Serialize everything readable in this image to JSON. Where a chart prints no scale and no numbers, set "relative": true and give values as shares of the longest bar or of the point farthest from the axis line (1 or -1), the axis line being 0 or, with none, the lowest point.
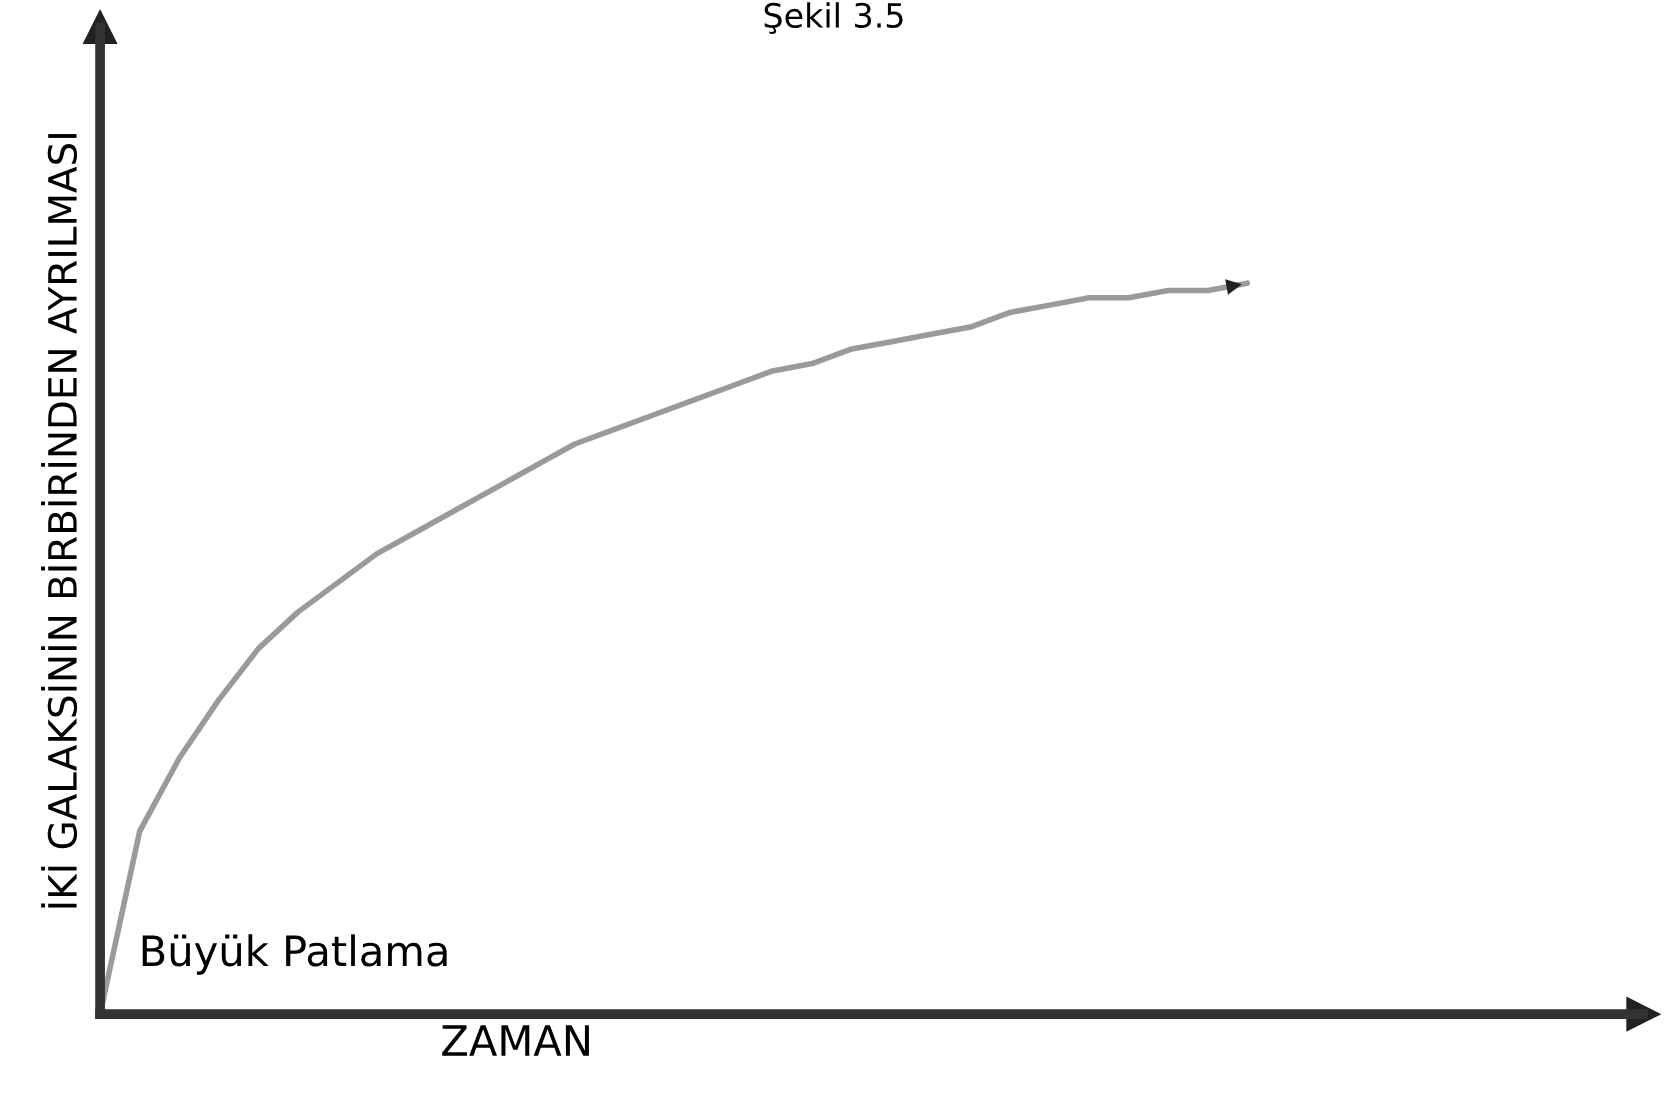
{
  "chart_data": {
    "type": "line",
    "title": "Şekil 3.5",
    "xlabel": "ZAMAN",
    "ylabel": "İKİ GALAKSİNİN BİRBİRİNDEN AYRILMASI",
    "relative": true,
    "annotations": [
      "Büyük Patlama"
    ],
    "categories": [
      null,
      null,
      null,
      null,
      null,
      null,
      null,
      null,
      null,
      null,
      null,
      null,
      null,
      null,
      null,
      null,
      null,
      null,
      null,
      null,
      null,
      null,
      null,
      null,
      null,
      null,
      null,
      null,
      null,
      null,
      null,
      null,
      null,
      null,
      null,
      null,
      null,
      null,
      null,
      null
    ],
    "series": [
      {
        "color": "#9a9a9a",
        "values": [
          0,
          0.25,
          0.35,
          0.43,
          0.5,
          0.55,
          0.59,
          0.63,
          0.66,
          0.69,
          0.72,
          0.75,
          0.78,
          0.8,
          0.82,
          0.84,
          0.86,
          0.88,
          0.89,
          0.91,
          0.92,
          0.93,
          0.94,
          0.96,
          0.97,
          0.98,
          0.98,
          0.99,
          0.99,
          1,
          null,
          null,
          null,
          null,
          null,
          null,
          null,
          null,
          null,
          null
        ]
      }
    ],
    "tick_labels": false
  }
}
